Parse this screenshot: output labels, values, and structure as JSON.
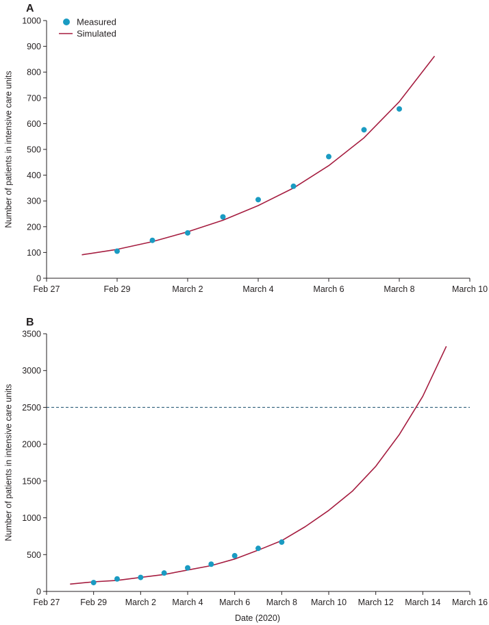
{
  "colors": {
    "measured": "#1a9bc2",
    "simulated": "#a51c3f",
    "reference": "#2f5f7a",
    "axis": "#231f20"
  },
  "chart_data": [
    {
      "type": "line",
      "panel_label": "A",
      "title": "",
      "xlabel": "",
      "ylabel": "Number of patients in intensive care units",
      "xlim": [
        "2020-02-27",
        "2020-03-10"
      ],
      "ylim": [
        0,
        1000
      ],
      "y_ticks": [
        0,
        100,
        200,
        300,
        400,
        500,
        600,
        700,
        800,
        900,
        1000
      ],
      "x_ticks": [
        {
          "date": "2020-02-27",
          "label": "Feb 27"
        },
        {
          "date": "2020-02-29",
          "label": "Feb 29"
        },
        {
          "date": "2020-03-02",
          "label": "March 2"
        },
        {
          "date": "2020-03-04",
          "label": "March 4"
        },
        {
          "date": "2020-03-06",
          "label": "March 6"
        },
        {
          "date": "2020-03-08",
          "label": "March 8"
        },
        {
          "date": "2020-03-10",
          "label": "March 10"
        }
      ],
      "legend": {
        "position": "top-left",
        "measured_label": "Measured",
        "simulated_label": "Simulated"
      },
      "series": [
        {
          "name": "Measured",
          "kind": "scatter",
          "x": [
            "2020-02-29",
            "2020-03-01",
            "2020-03-02",
            "2020-03-03",
            "2020-03-04",
            "2020-03-05",
            "2020-03-06",
            "2020-03-07",
            "2020-03-08"
          ],
          "y": [
            105,
            147,
            176,
            238,
            305,
            357,
            472,
            576,
            657
          ]
        },
        {
          "name": "Simulated",
          "kind": "line",
          "x": [
            "2020-02-28",
            "2020-02-29",
            "2020-03-01",
            "2020-03-02",
            "2020-03-03",
            "2020-03-04",
            "2020-03-05",
            "2020-03-06",
            "2020-03-07",
            "2020-03-08",
            "2020-03-09"
          ],
          "y": [
            91,
            112,
            142,
            180,
            225,
            282,
            350,
            437,
            545,
            685,
            862
          ]
        }
      ]
    },
    {
      "type": "line",
      "panel_label": "B",
      "title": "",
      "xlabel": "Date (2020)",
      "ylabel": "Number of patients in intensive care units",
      "xlim": [
        "2020-02-27",
        "2020-03-16"
      ],
      "ylim": [
        0,
        3500
      ],
      "y_ticks": [
        0,
        500,
        1000,
        1500,
        2000,
        2500,
        3000,
        3500
      ],
      "x_ticks": [
        {
          "date": "2020-02-27",
          "label": "Feb 27"
        },
        {
          "date": "2020-02-29",
          "label": "Feb 29"
        },
        {
          "date": "2020-03-02",
          "label": "March 2"
        },
        {
          "date": "2020-03-04",
          "label": "March 4"
        },
        {
          "date": "2020-03-06",
          "label": "March 6"
        },
        {
          "date": "2020-03-08",
          "label": "March 8"
        },
        {
          "date": "2020-03-10",
          "label": "March 10"
        },
        {
          "date": "2020-03-12",
          "label": "March 12"
        },
        {
          "date": "2020-03-14",
          "label": "March 14"
        },
        {
          "date": "2020-03-16",
          "label": "March 16"
        }
      ],
      "reference_line": {
        "y": 2500,
        "style": "dashed"
      },
      "series": [
        {
          "name": "Measured",
          "kind": "scatter",
          "x": [
            "2020-02-29",
            "2020-03-01",
            "2020-03-02",
            "2020-03-03",
            "2020-03-04",
            "2020-03-05",
            "2020-03-06",
            "2020-03-07",
            "2020-03-08"
          ],
          "y": [
            120,
            170,
            190,
            250,
            320,
            370,
            485,
            585,
            670
          ]
        },
        {
          "name": "Simulated",
          "kind": "line",
          "x": [
            "2020-02-28",
            "2020-02-29",
            "2020-03-01",
            "2020-03-02",
            "2020-03-03",
            "2020-03-04",
            "2020-03-05",
            "2020-03-06",
            "2020-03-07",
            "2020-03-08",
            "2020-03-09",
            "2020-03-10",
            "2020-03-11",
            "2020-03-12",
            "2020-03-13",
            "2020-03-14",
            "2020-03-15"
          ],
          "y": [
            100,
            130,
            150,
            190,
            230,
            290,
            350,
            440,
            560,
            690,
            880,
            1100,
            1360,
            1700,
            2130,
            2650,
            3330
          ]
        }
      ]
    }
  ]
}
